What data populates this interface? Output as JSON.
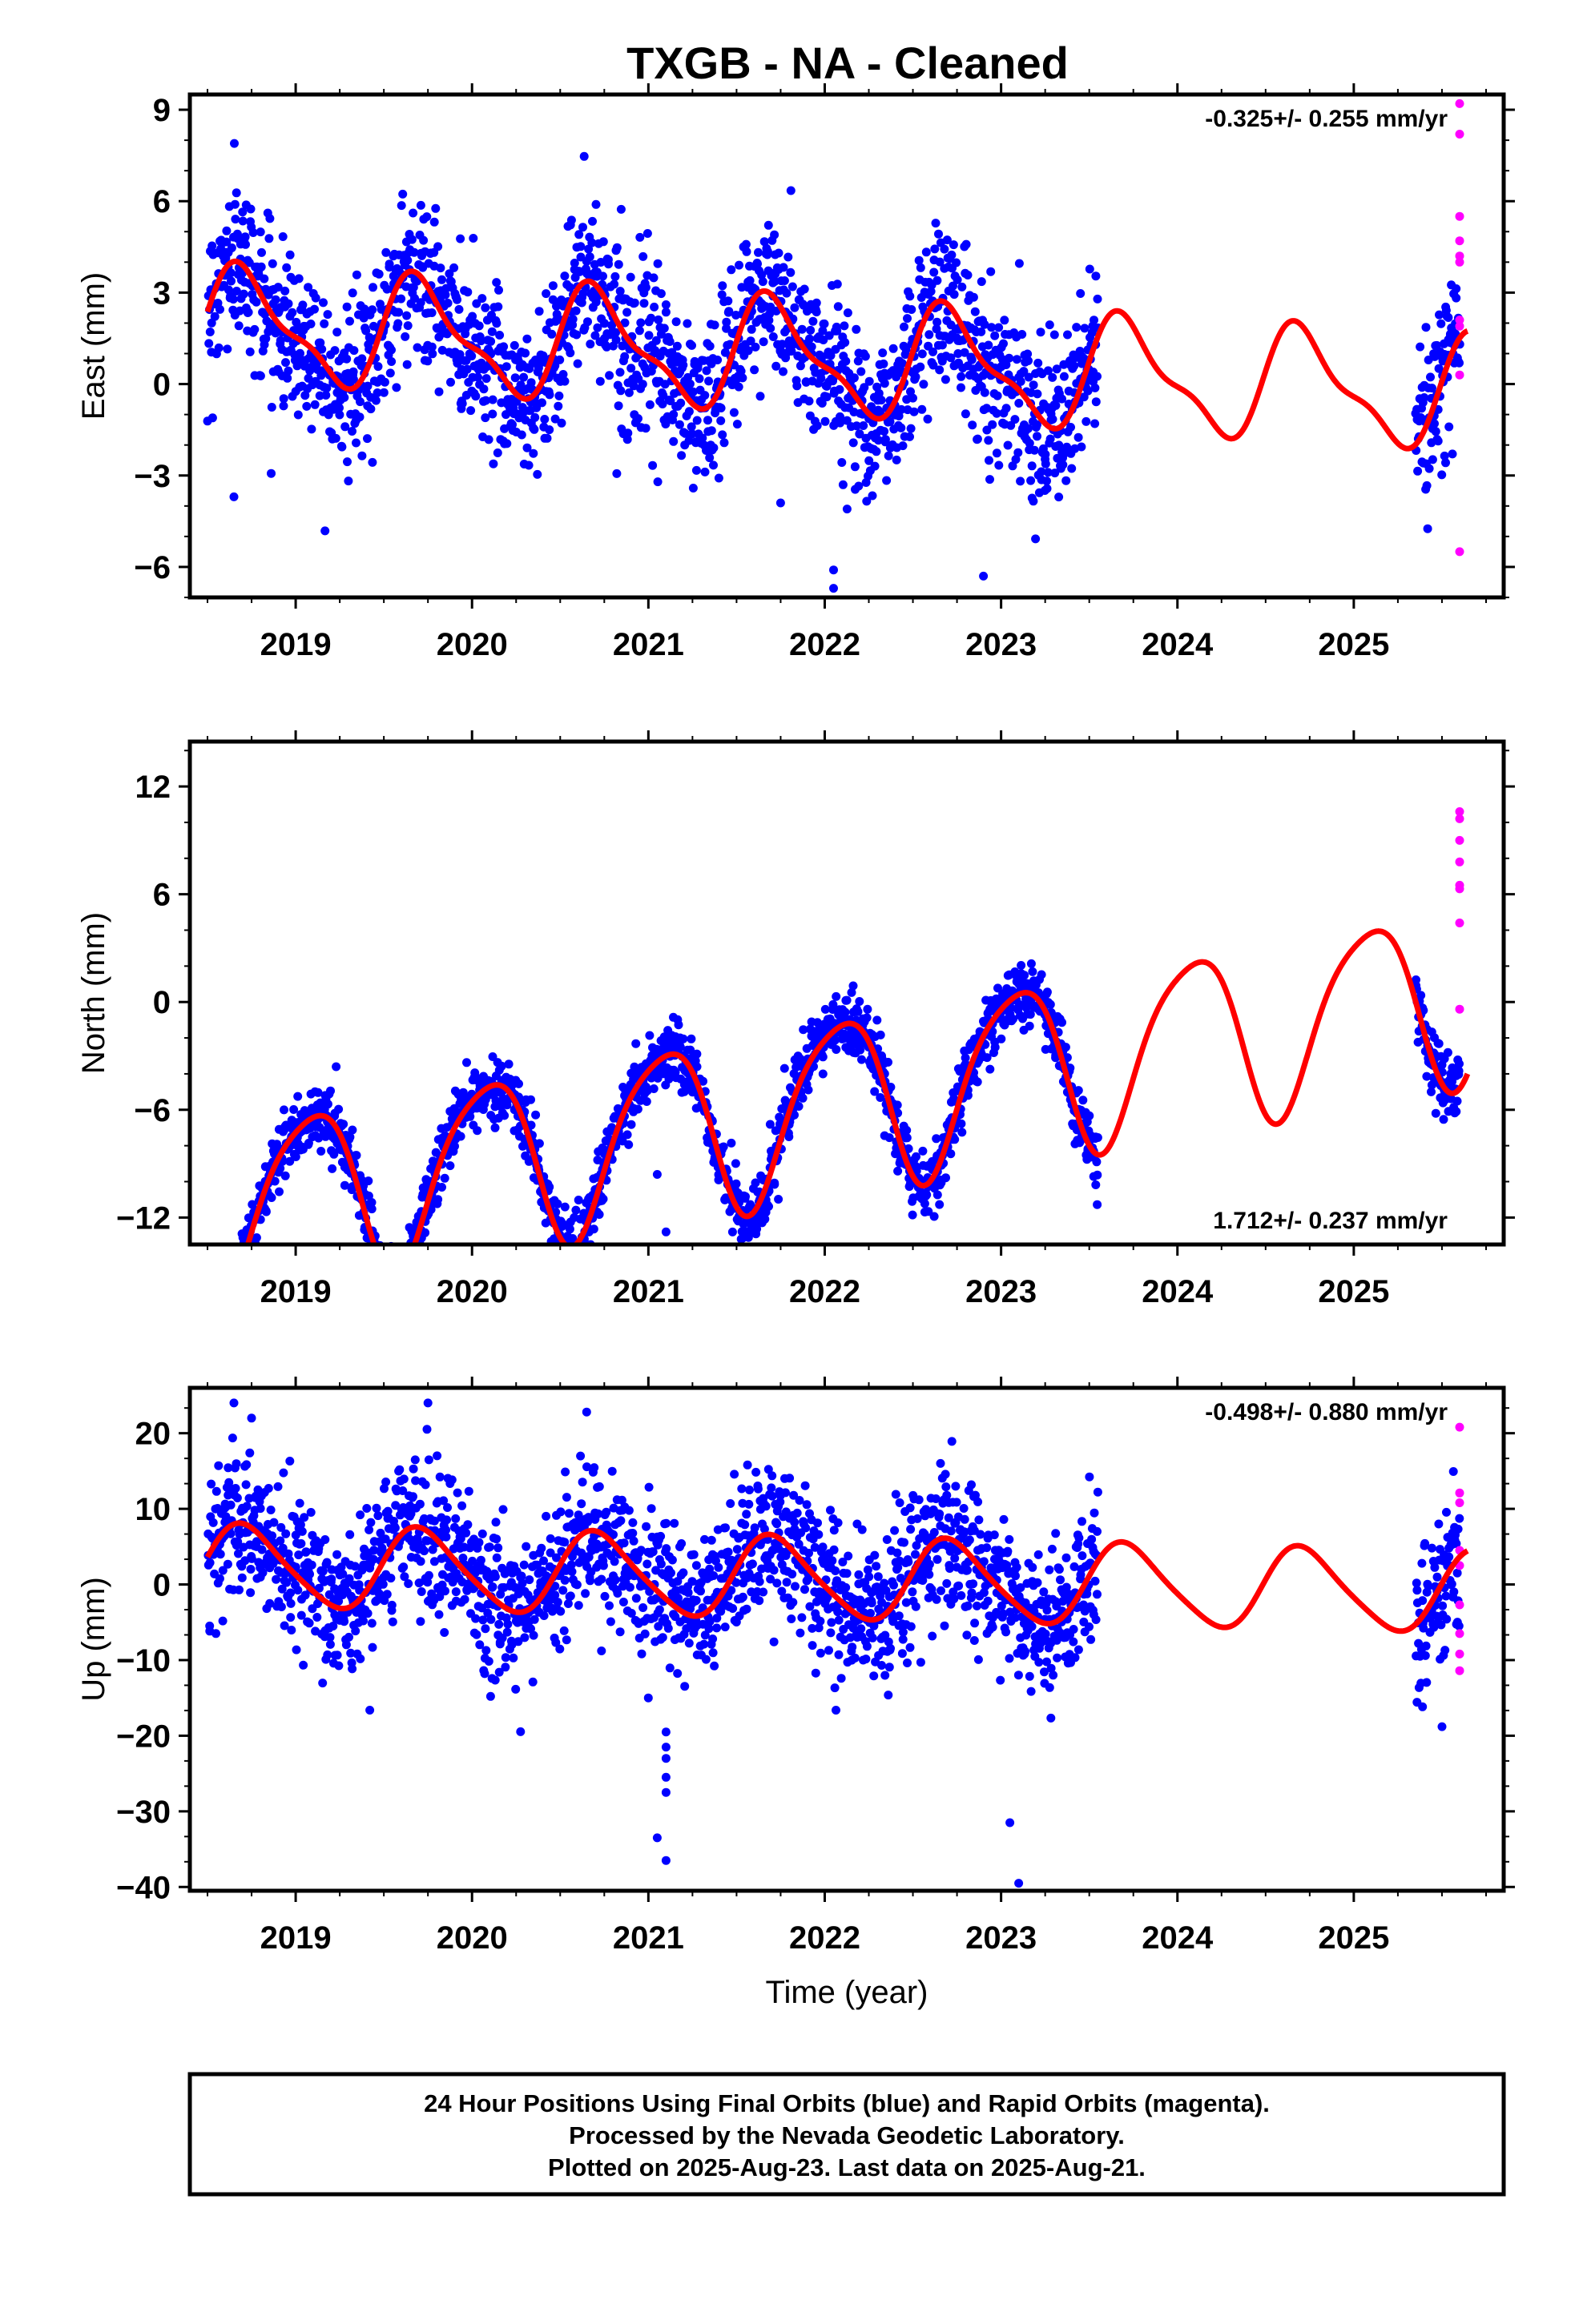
{
  "title": "TXGB  - NA - Cleaned",
  "chart_data": [
    {
      "type": "scatter",
      "component": "East",
      "ylabel": "East (mm)",
      "ylim": [
        -7,
        9.5
      ],
      "yticks": [
        9,
        6,
        3,
        0,
        -3,
        -6
      ],
      "xlim": [
        2018.4,
        2025.85
      ],
      "xticks": [
        2019,
        2020,
        2021,
        2022,
        2023,
        2024,
        2025
      ],
      "rate_text": "-0.325+/- 0.255 mm/yr",
      "rate_position": "top-right",
      "trend": -0.325,
      "offset": 1.0,
      "harmonics": [
        {
          "a": 1.7,
          "phase": 0.2
        },
        {
          "a": 0.6,
          "phase": 0.1
        }
      ],
      "scatter_sd": 1.3,
      "series": [
        {
          "name": "Final Orbits",
          "color": "#0000ff",
          "x_range": [
            2018.5,
            2023.55
          ],
          "x_range_2": [
            2025.35,
            2025.6
          ]
        },
        {
          "name": "Rapid Orbits",
          "color": "#ff00ff",
          "x": [
            2025.6,
            2025.6,
            2025.6,
            2025.6,
            2025.6,
            2025.6,
            2025.6,
            2025.6,
            2025.6,
            2025.6
          ],
          "y": [
            9.2,
            8.2,
            5.5,
            4.7,
            4.0,
            2.1,
            1.9,
            0.3,
            4.2,
            -5.5
          ]
        }
      ],
      "model_color": "#ff0000",
      "model_x_range": [
        2018.5,
        2025.65
      ],
      "outliers": [
        {
          "x": 2018.65,
          "y": -3.7
        },
        {
          "x": 2021.75,
          "y": -3.9
        },
        {
          "x": 2022.05,
          "y": -6.1
        },
        {
          "x": 2022.05,
          "y": -6.7
        },
        {
          "x": 2022.9,
          "y": -6.3
        }
      ]
    },
    {
      "type": "scatter",
      "component": "North",
      "ylabel": "North (mm)",
      "ylim": [
        -13.5,
        14.5
      ],
      "yticks": [
        12,
        6,
        0,
        -6,
        -12
      ],
      "xlim": [
        2018.4,
        2025.85
      ],
      "xticks": [
        2019,
        2020,
        2021,
        2022,
        2023,
        2024,
        2025
      ],
      "rate_text": "1.712+/- 0.237 mm/yr",
      "rate_position": "bottom-right",
      "trend": 1.712,
      "offset": -6.5,
      "harmonics": [
        {
          "a": 4.8,
          "phase": 0.0
        },
        {
          "a": 0.8,
          "phase": 0.0
        }
      ],
      "scatter_sd": 0.9,
      "series": [
        {
          "name": "Final Orbits",
          "color": "#0000ff",
          "x_range": [
            2018.5,
            2023.55
          ],
          "x_range_2": [
            2025.35,
            2025.6
          ]
        },
        {
          "name": "Rapid Orbits",
          "color": "#ff00ff",
          "x": [
            2025.6,
            2025.6,
            2025.6,
            2025.6,
            2025.6,
            2025.6,
            2025.6,
            2025.6
          ],
          "y": [
            10.2,
            9.0,
            7.8,
            6.5,
            6.3,
            4.4,
            -0.4,
            10.6
          ]
        }
      ],
      "model_color": "#ff0000",
      "model_x_range": [
        2018.5,
        2025.65
      ],
      "outliers": [
        {
          "x": 2021.05,
          "y": -9.6
        },
        {
          "x": 2021.1,
          "y": -12.8
        }
      ]
    },
    {
      "type": "scatter",
      "component": "Up",
      "ylabel": "Up (mm)",
      "xlabel": "Time (year)",
      "ylim": [
        -40.5,
        26
      ],
      "yticks": [
        20,
        10,
        0,
        -10,
        -20,
        -30,
        -40
      ],
      "xlim": [
        2018.4,
        2025.85
      ],
      "xticks": [
        2019,
        2020,
        2021,
        2022,
        2023,
        2024,
        2025
      ],
      "rate_text": "-0.498+/- 0.880 mm/yr",
      "rate_position": "top-right",
      "trend": -0.498,
      "offset": 1.0,
      "harmonics": [
        {
          "a": 5.3,
          "phase": 0.2
        },
        {
          "a": 0.8,
          "phase": 0.1
        }
      ],
      "scatter_sd": 4.8,
      "series": [
        {
          "name": "Final Orbits",
          "color": "#0000ff",
          "x_range": [
            2018.5,
            2023.55
          ],
          "x_range_2": [
            2025.35,
            2025.6
          ]
        },
        {
          "name": "Rapid Orbits",
          "color": "#ff00ff",
          "x": [
            2025.6,
            2025.6,
            2025.6,
            2025.6,
            2025.6,
            2025.6,
            2025.6,
            2025.6,
            2025.6
          ],
          "y": [
            20.8,
            12.1,
            10.8,
            4.5,
            2.5,
            -2.7,
            -6.5,
            -9.2,
            -11.4
          ]
        }
      ],
      "model_color": "#ff0000",
      "model_x_range": [
        2018.5,
        2025.65
      ],
      "outliers": [
        {
          "x": 2018.65,
          "y": 24.0
        },
        {
          "x": 2018.75,
          "y": 22.0
        },
        {
          "x": 2019.75,
          "y": 24.0
        },
        {
          "x": 2020.65,
          "y": 22.8
        },
        {
          "x": 2021.0,
          "y": -15.0
        },
        {
          "x": 2021.1,
          "y": -19.5
        },
        {
          "x": 2021.1,
          "y": -21.5
        },
        {
          "x": 2021.1,
          "y": -23.0
        },
        {
          "x": 2021.1,
          "y": -25.5
        },
        {
          "x": 2021.1,
          "y": -27.5
        },
        {
          "x": 2021.05,
          "y": -33.5
        },
        {
          "x": 2021.1,
          "y": -36.5
        },
        {
          "x": 2023.05,
          "y": -31.5
        },
        {
          "x": 2023.1,
          "y": -39.5
        },
        {
          "x": 2025.5,
          "y": -18.8
        }
      ]
    }
  ],
  "footer": {
    "line1": "24 Hour Positions Using Final Orbits (blue) and Rapid Orbits (magenta).",
    "line2": "Processed by the Nevada Geodetic Laboratory.",
    "line3": "Plotted on 2025-Aug-23. Last data on 2025-Aug-21."
  }
}
